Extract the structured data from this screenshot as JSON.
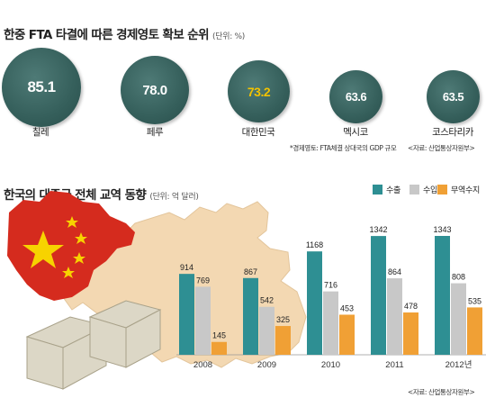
{
  "fta": {
    "title": "한중 FTA 타결에 따른 경제영토 확보 순위",
    "unit": "(단위: %)",
    "items": [
      {
        "country": "칠레",
        "value": "85.1"
      },
      {
        "country": "페루",
        "value": "78.0"
      },
      {
        "country": "대한민국",
        "value": "73.2"
      },
      {
        "country": "멕시코",
        "value": "63.6"
      },
      {
        "country": "코스타리카",
        "value": "63.5"
      }
    ],
    "footnote": "*경제영토: FTA체결 상대국의 GDP 규모",
    "source": "<자료: 산업통상자원부>",
    "colors": {
      "circle": "#355f5b",
      "highlight": "#f2c200",
      "text": "#ffffff"
    }
  },
  "trade": {
    "title": "한국의 대중국 전체 교역 동향",
    "unit": "(단위: 억 달러)",
    "source": "<자료: 산업통상자원부>"
  },
  "chart_data": {
    "type": "bar",
    "categories": [
      "2008",
      "2009",
      "2010",
      "2011",
      "2012년"
    ],
    "series": [
      {
        "name": "수출",
        "values": [
          914,
          867,
          1168,
          1342,
          1343
        ],
        "color": "#2e8f93"
      },
      {
        "name": "수입",
        "values": [
          769,
          542,
          716,
          864,
          808
        ],
        "color": "#c8c8c8"
      },
      {
        "name": "무역수지",
        "values": [
          145,
          325,
          453,
          478,
          535
        ],
        "color": "#f0a035"
      }
    ],
    "ylim": [
      0,
      1500
    ],
    "legend": "top-right",
    "grid": false
  }
}
